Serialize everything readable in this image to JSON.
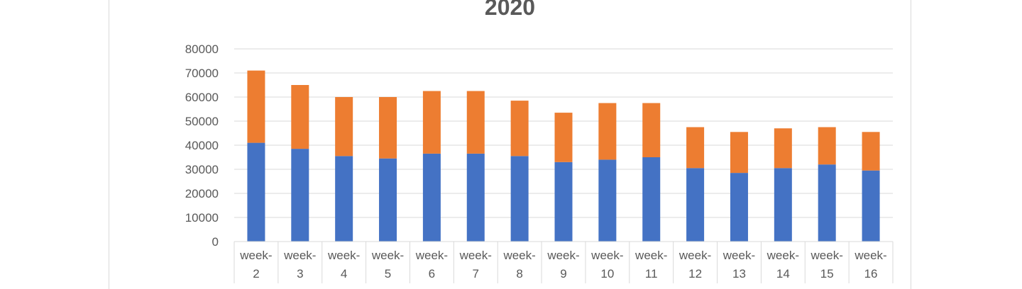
{
  "chart_data": {
    "type": "bar",
    "stacked": true,
    "title": "2020",
    "categories": [
      "week-2",
      "week-3",
      "week-4",
      "week-5",
      "week-6",
      "week-7",
      "week-8",
      "week-9",
      "week-10",
      "week-11",
      "week-12",
      "week-13",
      "week-14",
      "week-15",
      "week-16"
    ],
    "category_lines": [
      [
        "week-",
        "2"
      ],
      [
        "week-",
        "3"
      ],
      [
        "week-",
        "4"
      ],
      [
        "week-",
        "5"
      ],
      [
        "week-",
        "6"
      ],
      [
        "week-",
        "7"
      ],
      [
        "week-",
        "8"
      ],
      [
        "week-",
        "9"
      ],
      [
        "week-",
        "10"
      ],
      [
        "week-",
        "11"
      ],
      [
        "week-",
        "12"
      ],
      [
        "week-",
        "13"
      ],
      [
        "week-",
        "14"
      ],
      [
        "week-",
        "15"
      ],
      [
        "week-",
        "16"
      ]
    ],
    "series": [
      {
        "color": "#4472c4",
        "values": [
          41000,
          38500,
          35500,
          34500,
          36500,
          36500,
          35500,
          33000,
          34000,
          35000,
          30500,
          28500,
          30500,
          32000,
          29500
        ]
      },
      {
        "color": "#ed7d31",
        "values": [
          30000,
          26500,
          24500,
          25500,
          26000,
          26000,
          23000,
          20500,
          23500,
          22500,
          17000,
          17000,
          16500,
          15500,
          16000
        ]
      }
    ],
    "y_ticks": [
      0,
      10000,
      20000,
      30000,
      40000,
      50000,
      60000,
      70000,
      80000
    ],
    "ylim": [
      0,
      80000
    ],
    "grid": true,
    "legend": "none",
    "xlabel": "",
    "ylabel": ""
  }
}
